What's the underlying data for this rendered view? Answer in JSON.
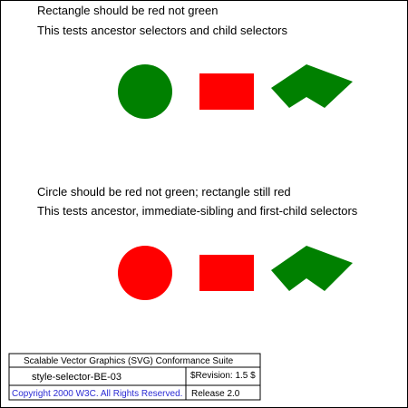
{
  "test1": {
    "heading": "Rectangle should be red not green",
    "description": "This tests ancestor selectors and child selectors",
    "circle_color": "#008000",
    "rect_color": "#ff0000",
    "poly_color": "#008000"
  },
  "test2": {
    "heading": "Circle should be red not green; rectangle still red",
    "description": "This tests ancestor, immediate-sibling and first-child selectors",
    "circle_color": "#ff0000",
    "rect_color": "#ff0000",
    "poly_color": "#008000"
  },
  "footer": {
    "suite_title": "Scalable Vector Graphics (SVG) Conformance Suite",
    "test_name": "style-selector-BE-03",
    "revision": "$Revision: 1.5 $",
    "copyright": "Copyright 2000 W3C. All Rights Reserved.",
    "release": "Release 2.0"
  }
}
